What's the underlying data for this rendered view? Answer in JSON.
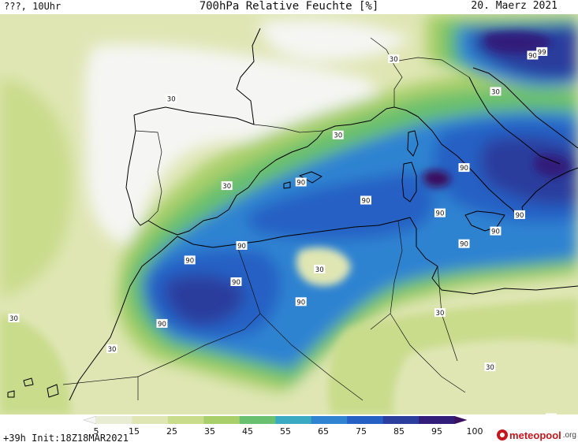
{
  "header": {
    "left": "???, 10Uhr",
    "title": "700hPa Relative Feuchte [%]",
    "date": "20. Maerz 2021"
  },
  "footer": {
    "run_info": "+39h Init:18Z18MAR2021"
  },
  "logo": {
    "main": "meteopool",
    "tld": ".org"
  },
  "colorbar": {
    "ticks": [
      "5",
      "15",
      "25",
      "35",
      "45",
      "55",
      "65",
      "75",
      "85",
      "95",
      "100"
    ],
    "colors": [
      "#f5f5f3",
      "#e8ecd2",
      "#dfe6b4",
      "#c9dc8c",
      "#a9cf6a",
      "#69c06e",
      "#3aa9c2",
      "#2f83d1",
      "#2561c4",
      "#2b3d9d",
      "#321e7a",
      "#3b0f5e"
    ]
  },
  "map": {
    "contour_labels": [
      {
        "text": "30",
        "lon": -6.0,
        "lat": 43.6
      },
      {
        "text": "30",
        "lon": 6.0,
        "lat": 45.8
      },
      {
        "text": "30",
        "lon": 3.0,
        "lat": 41.6
      },
      {
        "text": "30",
        "lon": -3.0,
        "lat": 38.8
      },
      {
        "text": "30",
        "lon": -14.5,
        "lat": 31.5
      },
      {
        "text": "30",
        "lon": -9.2,
        "lat": 29.8
      },
      {
        "text": "30",
        "lon": 2.0,
        "lat": 34.2
      },
      {
        "text": "30",
        "lon": 8.5,
        "lat": 31.8
      },
      {
        "text": "30",
        "lon": 11.2,
        "lat": 28.8
      },
      {
        "text": "30",
        "lon": 14.5,
        "lat": 26.0
      },
      {
        "text": "30",
        "lon": 2.0,
        "lat": 25.6
      },
      {
        "text": "30",
        "lon": 11.5,
        "lat": 44.0
      },
      {
        "text": "90",
        "lon": 1.0,
        "lat": 39.0
      },
      {
        "text": "90",
        "lon": 4.5,
        "lat": 38.0
      },
      {
        "text": "90",
        "lon": 9.8,
        "lat": 39.8
      },
      {
        "text": "90",
        "lon": 8.5,
        "lat": 37.3
      },
      {
        "text": "90",
        "lon": -2.2,
        "lat": 35.5
      },
      {
        "text": "90",
        "lon": -5.0,
        "lat": 34.7
      },
      {
        "text": "90",
        "lon": -2.5,
        "lat": 33.5
      },
      {
        "text": "90",
        "lon": 1.0,
        "lat": 32.4
      },
      {
        "text": "90",
        "lon": -6.5,
        "lat": 31.2
      },
      {
        "text": "90",
        "lon": 11.5,
        "lat": 36.3
      },
      {
        "text": "90",
        "lon": 9.8,
        "lat": 35.6
      },
      {
        "text": "90",
        "lon": 12.8,
        "lat": 37.2
      },
      {
        "text": "90",
        "lon": 13.5,
        "lat": 46.0
      },
      {
        "text": "99",
        "lon": 14.0,
        "lat": 46.2
      },
      {
        "text": "90",
        "lon": 16.4,
        "lat": 43.8
      }
    ]
  }
}
